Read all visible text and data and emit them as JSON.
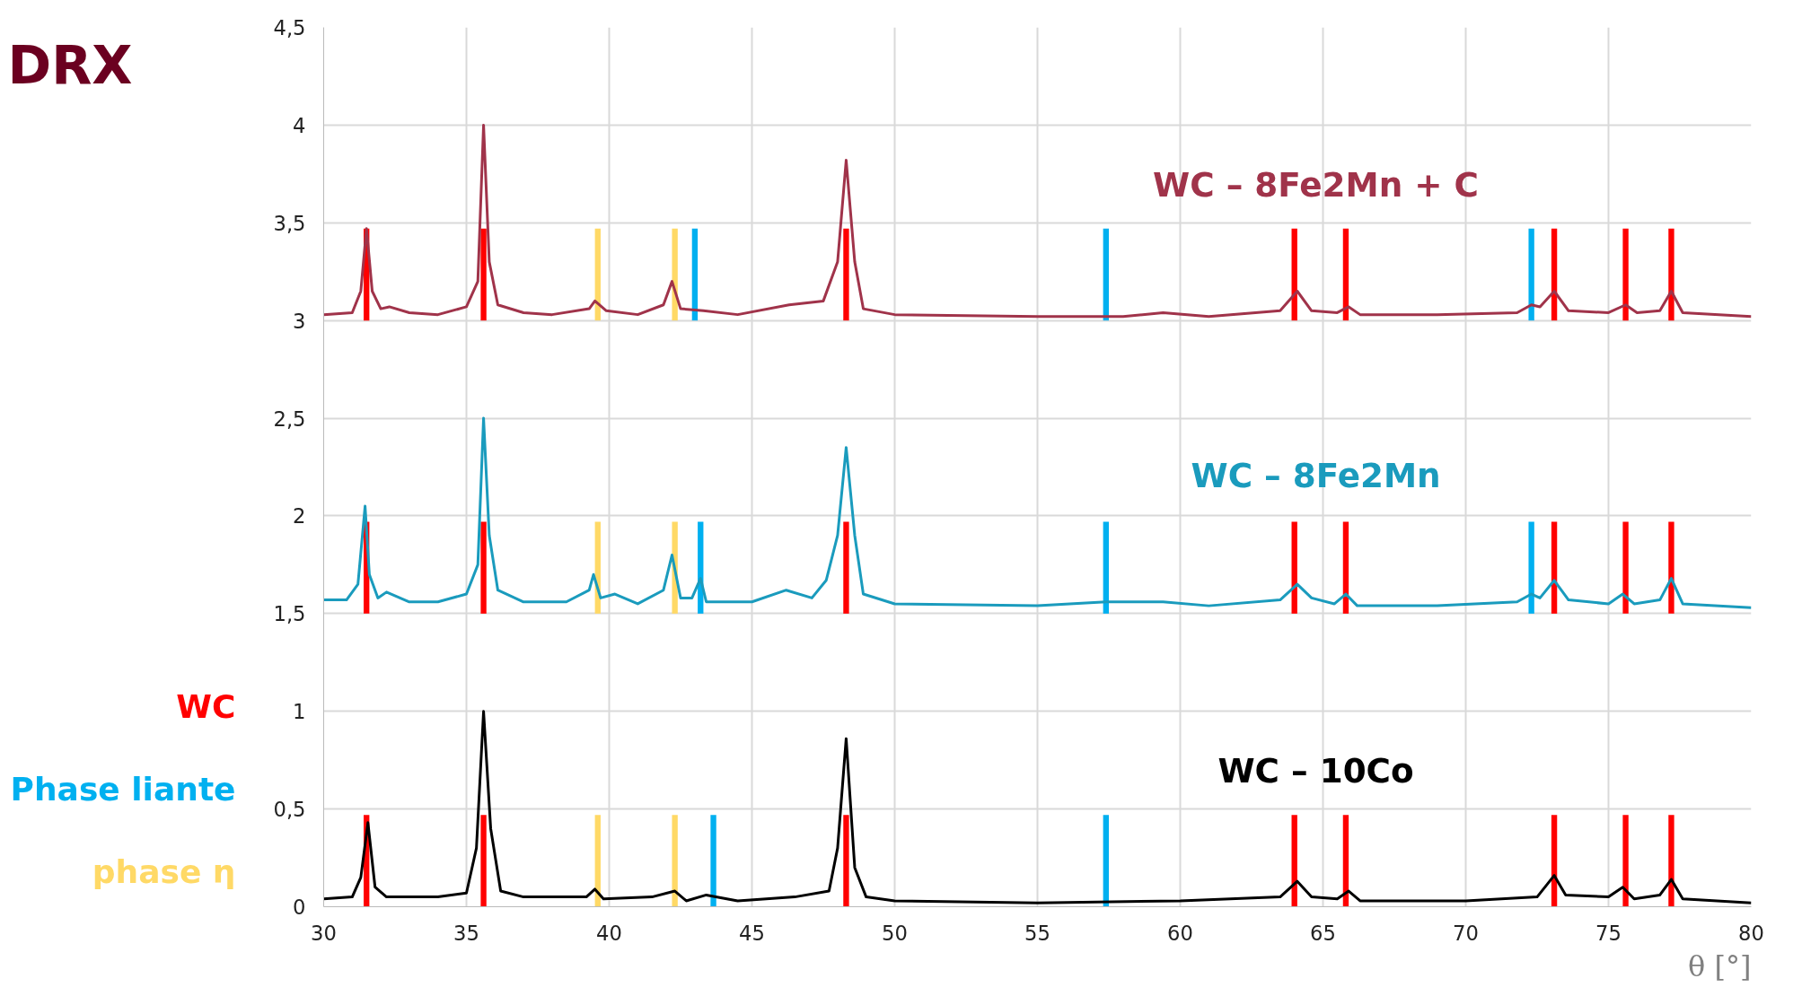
{
  "chart_data": {
    "type": "line",
    "title": "DRX",
    "xlabel": "θ [°]",
    "xlim": [
      30,
      80
    ],
    "xticks": [
      30,
      35,
      40,
      45,
      50,
      55,
      60,
      65,
      70,
      75,
      80
    ],
    "ylim": [
      0,
      4.5
    ],
    "yticks": [
      0,
      {
        "value": 0.5,
        "label": "0,5"
      },
      1,
      {
        "value": 1.5,
        "label": "1,5"
      },
      2,
      {
        "value": 2.5,
        "label": "2,5"
      },
      3,
      {
        "value": 3.5,
        "label": "3,5"
      },
      4,
      {
        "value": 4.5,
        "label": "4,5"
      }
    ],
    "grid": true,
    "legend": "left",
    "series": [
      {
        "name": "WC – 8Fe2Mn + C",
        "color": "#a0334a",
        "x": [
          30,
          31.0,
          31.3,
          31.5,
          31.7,
          32.0,
          32.3,
          33,
          34,
          35.0,
          35.4,
          35.6,
          35.8,
          36.1,
          37,
          38,
          39.3,
          39.5,
          39.9,
          41,
          41.9,
          42.2,
          42.5,
          43.3,
          44.5,
          46.3,
          47.5,
          48.0,
          48.3,
          48.6,
          48.9,
          50,
          55,
          58,
          59.4,
          61,
          63.5,
          64.1,
          64.6,
          65.5,
          65.9,
          66.3,
          69,
          71.8,
          72.3,
          72.6,
          73.1,
          73.6,
          75.0,
          75.6,
          76.0,
          76.8,
          77.2,
          77.6,
          80
        ],
        "values": [
          3.03,
          3.04,
          3.15,
          3.47,
          3.15,
          3.06,
          3.07,
          3.04,
          3.03,
          3.07,
          3.2,
          4.0,
          3.3,
          3.08,
          3.04,
          3.03,
          3.06,
          3.1,
          3.05,
          3.03,
          3.08,
          3.2,
          3.06,
          3.05,
          3.03,
          3.08,
          3.1,
          3.3,
          3.82,
          3.3,
          3.06,
          3.03,
          3.02,
          3.02,
          3.04,
          3.02,
          3.05,
          3.15,
          3.05,
          3.04,
          3.07,
          3.03,
          3.03,
          3.04,
          3.08,
          3.07,
          3.15,
          3.05,
          3.04,
          3.08,
          3.04,
          3.05,
          3.15,
          3.04,
          3.02
        ]
      },
      {
        "name": "WC – 8Fe2Mn",
        "color": "#1a9bbd",
        "x": [
          30,
          30.8,
          31.2,
          31.45,
          31.6,
          31.9,
          32.2,
          33,
          34,
          35.0,
          35.4,
          35.6,
          35.8,
          36.1,
          37,
          38.5,
          39.3,
          39.45,
          39.7,
          40.2,
          41,
          41.9,
          42.2,
          42.5,
          42.9,
          43.2,
          43.4,
          45,
          46.2,
          47.1,
          47.6,
          48.0,
          48.3,
          48.6,
          48.9,
          50,
          55,
          57.4,
          59.4,
          61,
          63.5,
          64.1,
          64.6,
          65.4,
          65.8,
          66.2,
          69,
          71.8,
          72.3,
          72.6,
          73.1,
          73.6,
          75.0,
          75.5,
          75.9,
          76.8,
          77.2,
          77.6,
          80
        ],
        "values": [
          1.57,
          1.57,
          1.65,
          2.05,
          1.7,
          1.58,
          1.61,
          1.56,
          1.56,
          1.6,
          1.75,
          2.5,
          1.9,
          1.62,
          1.56,
          1.56,
          1.62,
          1.7,
          1.58,
          1.6,
          1.55,
          1.62,
          1.8,
          1.58,
          1.58,
          1.68,
          1.56,
          1.56,
          1.62,
          1.58,
          1.67,
          1.9,
          2.35,
          1.9,
          1.6,
          1.55,
          1.54,
          1.56,
          1.56,
          1.54,
          1.57,
          1.65,
          1.58,
          1.55,
          1.6,
          1.54,
          1.54,
          1.56,
          1.6,
          1.58,
          1.67,
          1.57,
          1.55,
          1.6,
          1.55,
          1.57,
          1.68,
          1.55,
          1.53
        ]
      },
      {
        "name": "WC – 10Co",
        "color": "#000000",
        "x": [
          30,
          31.0,
          31.3,
          31.55,
          31.8,
          32.2,
          34,
          35.0,
          35.35,
          35.6,
          35.85,
          36.2,
          37,
          39.2,
          39.5,
          39.8,
          41.5,
          42.3,
          42.7,
          43.4,
          44.5,
          46.5,
          47.7,
          48.0,
          48.3,
          48.6,
          49,
          50,
          55,
          60,
          63.5,
          64.1,
          64.6,
          65.5,
          65.9,
          66.3,
          70,
          72.5,
          73.1,
          73.5,
          75.0,
          75.5,
          75.9,
          76.8,
          77.2,
          77.6,
          80
        ],
        "values": [
          0.04,
          0.05,
          0.15,
          0.43,
          0.1,
          0.05,
          0.05,
          0.07,
          0.3,
          1.0,
          0.4,
          0.08,
          0.05,
          0.05,
          0.09,
          0.04,
          0.05,
          0.08,
          0.03,
          0.06,
          0.03,
          0.05,
          0.08,
          0.3,
          0.86,
          0.2,
          0.05,
          0.03,
          0.02,
          0.03,
          0.05,
          0.13,
          0.05,
          0.04,
          0.08,
          0.03,
          0.03,
          0.05,
          0.16,
          0.06,
          0.05,
          0.1,
          0.04,
          0.06,
          0.14,
          0.04,
          0.02
        ]
      },
      {
        "name": "WC",
        "type": "bar",
        "color": "#ff0000",
        "x": [
          31.5,
          35.6,
          48.3,
          64.0,
          65.8,
          73.1,
          75.6,
          77.2
        ],
        "base": [
          3,
          3,
          3,
          3,
          3,
          3,
          3,
          3
        ],
        "values": [
          0.47,
          0.47,
          0.47,
          0.47,
          0.47,
          0.47,
          0.47,
          0.47
        ]
      },
      {
        "type": "bar",
        "color": "#ff0000",
        "x": [
          31.5,
          35.6,
          48.3,
          64.0,
          65.8,
          73.1,
          75.6,
          77.2
        ],
        "base": [
          1.5,
          1.5,
          1.5,
          1.5,
          1.5,
          1.5,
          1.5,
          1.5
        ],
        "values": [
          0.47,
          0.47,
          0.47,
          0.47,
          0.47,
          0.47,
          0.47,
          0.47
        ]
      },
      {
        "type": "bar",
        "color": "#ff0000",
        "x": [
          31.5,
          35.6,
          48.3,
          64.0,
          65.8,
          73.1,
          75.6,
          77.2
        ],
        "base": [
          0,
          0,
          0,
          0,
          0,
          0,
          0,
          0
        ],
        "values": [
          0.47,
          0.47,
          0.47,
          0.47,
          0.47,
          0.47,
          0.47,
          0.47
        ]
      },
      {
        "name": "Phase liante",
        "type": "bar",
        "color": "#00b0f0",
        "x": [
          43.0,
          57.4,
          72.3
        ],
        "base": [
          3,
          3,
          3
        ],
        "values": [
          0.47,
          0.47,
          0.47
        ]
      },
      {
        "type": "bar",
        "color": "#00b0f0",
        "x": [
          43.2,
          57.4,
          72.3
        ],
        "base": [
          1.5,
          1.5,
          1.5
        ],
        "values": [
          0.47,
          0.47,
          0.47
        ]
      },
      {
        "type": "bar",
        "color": "#00b0f0",
        "x": [
          43.65,
          57.4
        ],
        "base": [
          0,
          0
        ],
        "values": [
          0.47,
          0.47
        ]
      },
      {
        "name": "phase η",
        "type": "bar",
        "color": "#ffd966",
        "x": [
          39.6,
          42.3
        ],
        "base": [
          3,
          3
        ],
        "values": [
          0.47,
          0.47
        ]
      },
      {
        "type": "bar",
        "color": "#ffd966",
        "x": [
          39.6,
          42.3
        ],
        "base": [
          1.5,
          1.5
        ],
        "values": [
          0.47,
          0.47
        ]
      },
      {
        "type": "bar",
        "color": "#ffd966",
        "x": [
          39.6,
          42.3
        ],
        "base": [
          0,
          0
        ],
        "values": [
          0.47,
          0.47
        ]
      }
    ]
  }
}
